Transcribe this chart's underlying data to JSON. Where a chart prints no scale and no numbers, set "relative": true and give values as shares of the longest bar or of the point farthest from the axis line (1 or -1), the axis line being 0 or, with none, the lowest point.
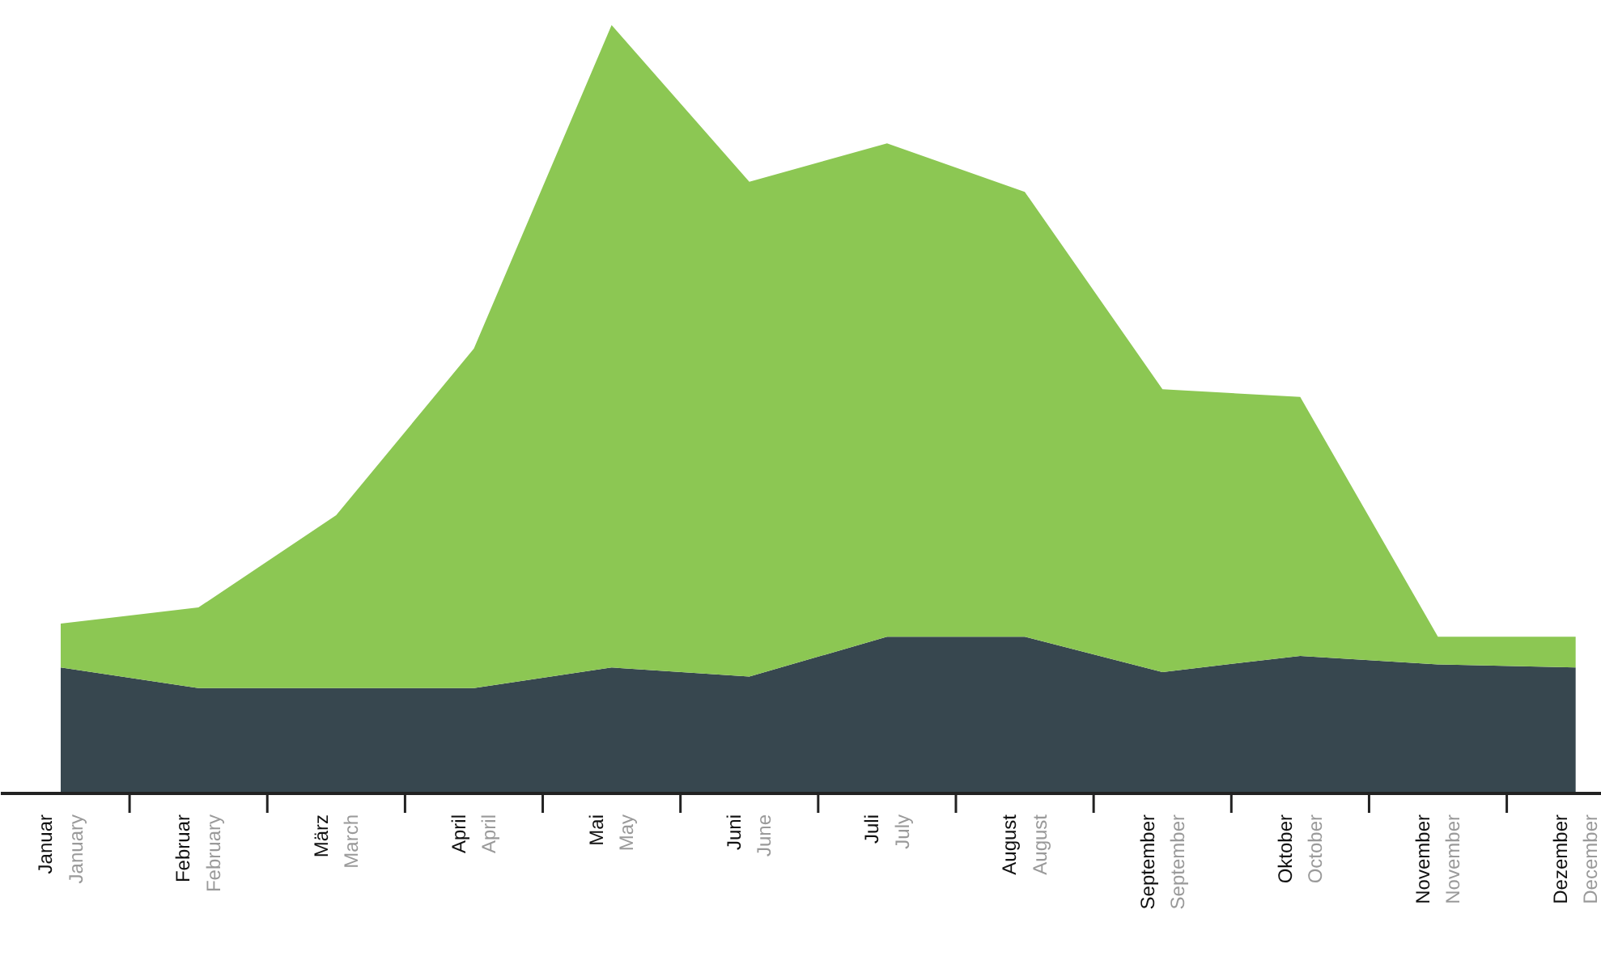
{
  "chart_data": {
    "type": "area",
    "relative": true,
    "stacked": true,
    "categories": [
      "Januar\nJanuary",
      "Februar\nFebruary",
      "März\nMarch",
      "April\nApril",
      "Mai\nMay",
      "Juni\nJune",
      "Juli\nJuly",
      "August\nAugust",
      "September\nSeptember",
      "Oktober\nOctober",
      "November\nNovember",
      "Dezember\nDecember"
    ],
    "series": [
      {
        "color": "#37474f",
        "values": [
          0.164,
          0.137,
          0.137,
          0.137,
          0.164,
          0.152,
          0.204,
          0.204,
          0.158,
          0.179,
          0.168,
          0.164
        ]
      },
      {
        "color": "#8cc753",
        "values": [
          0.057,
          0.105,
          0.225,
          0.442,
          0.836,
          0.644,
          0.642,
          0.579,
          0.368,
          0.337,
          0.036,
          0.04
        ]
      }
    ]
  }
}
